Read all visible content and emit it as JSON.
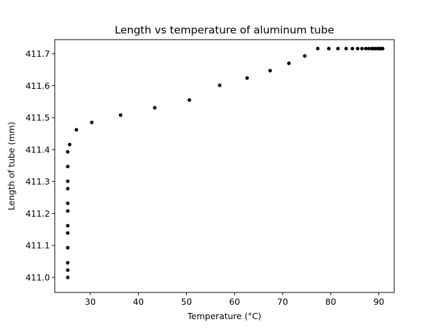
{
  "chart_data": {
    "type": "scatter",
    "title": "Length vs temperature of aluminum tube",
    "xlabel": "Temperature (°C)",
    "ylabel": "Length of tube (mm)",
    "xlim": [
      22.6,
      93.2
    ],
    "ylim": [
      410.953,
      411.744
    ],
    "x_ticks": [
      30,
      40,
      50,
      60,
      70,
      80,
      90
    ],
    "x_tick_labels": [
      "30",
      "40",
      "50",
      "60",
      "70",
      "80",
      "90"
    ],
    "y_ticks": [
      411.0,
      411.1,
      411.2,
      411.3,
      411.4,
      411.5,
      411.6,
      411.7
    ],
    "y_tick_labels": [
      "411.0",
      "411.1",
      "411.2",
      "411.3",
      "411.4",
      "411.5",
      "411.6",
      "411.7"
    ],
    "grid": false,
    "marker_color": "#000000",
    "series": [
      {
        "points": [
          [
            25.3,
            411.0
          ],
          [
            25.3,
            411.023
          ],
          [
            25.3,
            411.046
          ],
          [
            25.3,
            411.093
          ],
          [
            25.3,
            411.139
          ],
          [
            25.3,
            411.162
          ],
          [
            25.3,
            411.208
          ],
          [
            25.3,
            411.232
          ],
          [
            25.3,
            411.278
          ],
          [
            25.3,
            411.301
          ],
          [
            25.3,
            411.347
          ],
          [
            25.3,
            411.393
          ],
          [
            25.7,
            411.416
          ],
          [
            27.1,
            411.462
          ],
          [
            30.3,
            411.485
          ],
          [
            36.3,
            411.508
          ],
          [
            43.4,
            411.531
          ],
          [
            50.6,
            411.555
          ],
          [
            56.9,
            411.601
          ],
          [
            62.6,
            411.624
          ],
          [
            67.4,
            411.647
          ],
          [
            71.3,
            411.67
          ],
          [
            74.6,
            411.693
          ],
          [
            77.3,
            411.716
          ],
          [
            79.6,
            411.716
          ],
          [
            81.5,
            411.716
          ],
          [
            83.2,
            411.716
          ],
          [
            84.5,
            411.716
          ],
          [
            85.6,
            411.716
          ],
          [
            86.5,
            411.716
          ],
          [
            87.3,
            411.716
          ],
          [
            87.9,
            411.716
          ],
          [
            88.5,
            411.716
          ],
          [
            88.9,
            411.716
          ],
          [
            89.3,
            411.716
          ],
          [
            89.7,
            411.716
          ],
          [
            90.0,
            411.716
          ],
          [
            90.3,
            411.716
          ],
          [
            90.6,
            411.716
          ],
          [
            90.8,
            411.716
          ]
        ]
      }
    ]
  }
}
